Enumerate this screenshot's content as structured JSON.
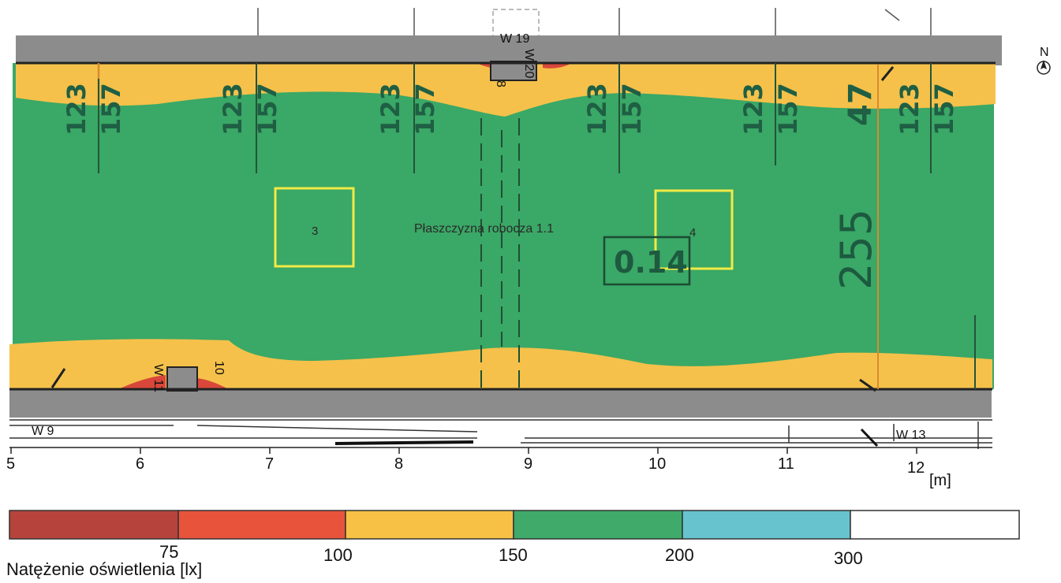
{
  "plan": {
    "contour_values": [
      "123",
      "157",
      "47"
    ],
    "value_255": "255",
    "value_014": "0.14",
    "work_plane": "Płaszczyzna robocza 1.1",
    "luminaire_3": "3",
    "luminaire_4": "4",
    "windows": {
      "w19": "W 19",
      "w20": "W 20",
      "w8": "8",
      "w11": "W 11",
      "w10": "10",
      "w9": "W 9",
      "w13": "W 13"
    },
    "compass": "N"
  },
  "axis": {
    "ticks": [
      "5",
      "6",
      "7",
      "8",
      "9",
      "10",
      "11",
      "12"
    ],
    "unit": "[m]"
  },
  "legend": {
    "title": "Natężenie oświetlenia [lx]",
    "colors": [
      "#b6443c",
      "#e8533c",
      "#f6c144",
      "#3faa6a",
      "#67c4cf",
      "#ffffff"
    ],
    "values": [
      "75",
      "100",
      "150",
      "200",
      "300"
    ]
  }
}
